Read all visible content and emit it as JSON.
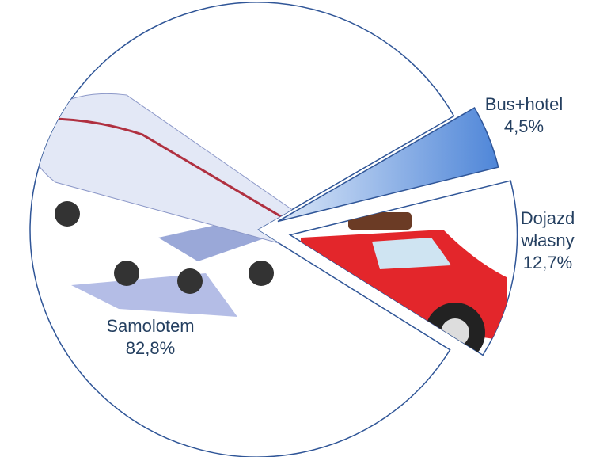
{
  "chart_data": {
    "type": "pie",
    "categories": [
      "Bus+hotel",
      "Dojazd własny",
      "Samolotem"
    ],
    "values": [
      4.5,
      12.7,
      82.8
    ],
    "value_labels": [
      "4,5%",
      "12,7%",
      "82,8%"
    ],
    "colors": [
      "#6f9fe3",
      "#ffffff",
      "#ffffff"
    ],
    "edge_color": "#2f5597"
  }
}
